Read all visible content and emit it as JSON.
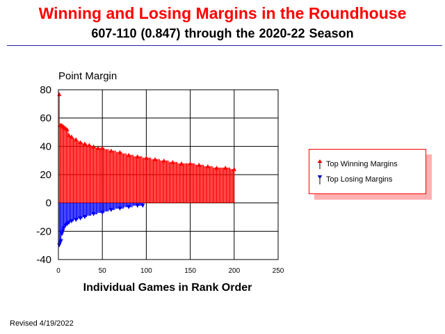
{
  "header": {
    "title": "Winning and Losing Margins in the Roundhouse",
    "subtitle": "607-110 (0.847)  through the 2020-22 Season"
  },
  "footer": {
    "revised": "Revised 4/19/2022"
  },
  "colors": {
    "win": "#ff0000",
    "loss": "#0000ff",
    "grid": "#000000"
  },
  "chart_data": {
    "type": "bar",
    "ylabel": "Point Margin",
    "xlabel": "Individual Games in Rank Order",
    "xlim": [
      0,
      250
    ],
    "ylim": [
      -40,
      80
    ],
    "xticks": [
      0,
      50,
      100,
      150,
      200,
      250
    ],
    "yticks": [
      -40,
      -20,
      0,
      20,
      40,
      60,
      80
    ],
    "grid": true,
    "legend_position": "right",
    "series": [
      {
        "name": "Top Winning Margins",
        "marker": "up-arrow",
        "x": [
          1,
          2,
          3,
          4,
          5,
          6,
          7,
          8,
          10,
          12,
          15,
          20,
          25,
          30,
          35,
          40,
          45,
          50,
          60,
          70,
          80,
          90,
          100,
          110,
          120,
          130,
          140,
          150,
          160,
          170,
          180,
          190,
          200
        ],
        "values": [
          77,
          55,
          55,
          55,
          54,
          54,
          53,
          53,
          52,
          48,
          47,
          45,
          43,
          42,
          41,
          40,
          39,
          39,
          37,
          36,
          34,
          33,
          32,
          31,
          30,
          29,
          28,
          28,
          27,
          26,
          25,
          25,
          24
        ]
      },
      {
        "name": "Top Losing Margins",
        "marker": "down-arrow",
        "x": [
          1,
          2,
          3,
          4,
          5,
          6,
          8,
          10,
          12,
          15,
          20,
          25,
          30,
          40,
          50,
          60,
          70,
          80,
          90,
          96
        ],
        "values": [
          -30,
          -28,
          -27,
          -22,
          -20,
          -18,
          -16,
          -15,
          -14,
          -13,
          -12,
          -11,
          -10,
          -8,
          -7,
          -5,
          -4,
          -3,
          -2,
          -2
        ]
      }
    ]
  }
}
